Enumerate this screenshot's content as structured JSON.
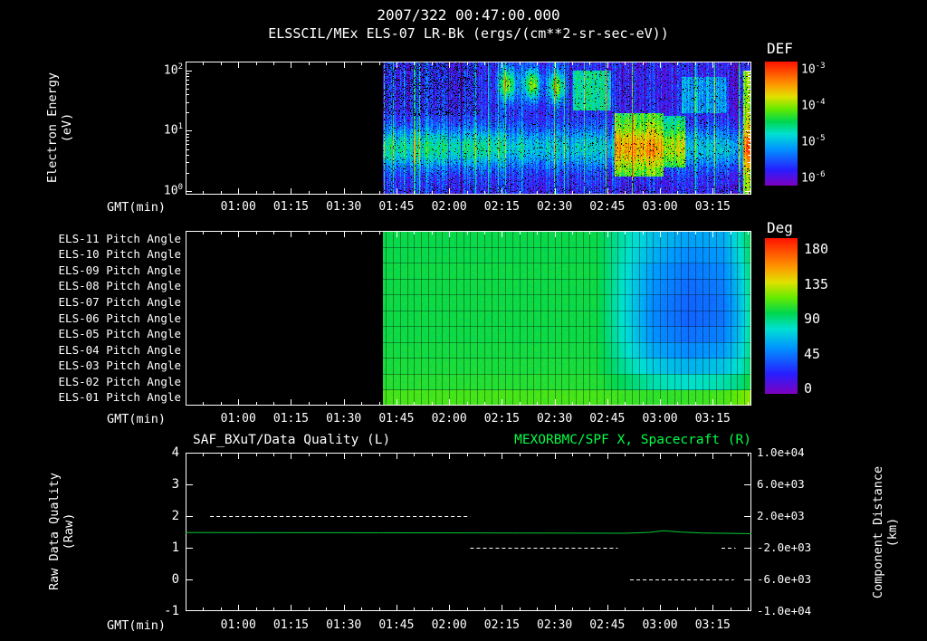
{
  "header": {
    "title": "2007/322 00:47:00.000",
    "subtitle": "ELSSCIL/MEx ELS-07 LR-Bk  (ergs/(cm**2-sr-sec-eV))"
  },
  "time_axis": {
    "label": "GMT(min)",
    "t_start": 45,
    "t_end": 206,
    "minor_step": 5,
    "major_ticks": [
      {
        "t": 60,
        "label": "01:00"
      },
      {
        "t": 75,
        "label": "01:15"
      },
      {
        "t": 90,
        "label": "01:30"
      },
      {
        "t": 105,
        "label": "01:45"
      },
      {
        "t": 120,
        "label": "02:00"
      },
      {
        "t": 135,
        "label": "02:15"
      },
      {
        "t": 150,
        "label": "02:30"
      },
      {
        "t": 165,
        "label": "02:45"
      },
      {
        "t": 180,
        "label": "03:00"
      },
      {
        "t": 195,
        "label": "03:15"
      }
    ]
  },
  "colors": {
    "background": "#000000",
    "frame": "#ffffff",
    "text": "#ffffff",
    "green_accent": "#00ff44",
    "spacecraft_line": "#00cc33"
  },
  "rainbow_stops": [
    [
      0.0,
      130,
      0,
      190
    ],
    [
      0.13,
      40,
      30,
      255
    ],
    [
      0.3,
      0,
      150,
      255
    ],
    [
      0.42,
      0,
      225,
      210
    ],
    [
      0.52,
      0,
      215,
      80
    ],
    [
      0.62,
      100,
      235,
      0
    ],
    [
      0.72,
      225,
      225,
      0
    ],
    [
      0.82,
      255,
      150,
      0
    ],
    [
      1.0,
      255,
      20,
      0
    ]
  ],
  "chart_data": [
    {
      "id": "electron-energy-spectrogram",
      "type": "heatmap",
      "ylabel": {
        "line1": "Electron Energy",
        "line2": "(eV)"
      },
      "y_scale": "log",
      "y_tick_exponents": [
        2,
        1,
        0
      ],
      "exp_top": 2.15,
      "exp_bottom": -0.06,
      "colorbar": {
        "label": "DEF",
        "tick_exponents": [
          -3,
          -4,
          -5,
          -6
        ],
        "range_exp": [
          -6,
          -3
        ]
      },
      "data_start_t": 101,
      "base_level": -5.6,
      "band": {
        "center_exp": 0.72,
        "sigma": 0.33,
        "amp": 0.95,
        "fade_after_t": 135,
        "fade_factor": 0.8
      },
      "patches": {
        "sigma_t": 2.4,
        "sigma_exp": 0.27,
        "items": [
          {
            "t": 136.5,
            "exp": 1.78,
            "amp": 1.5
          },
          {
            "t": 143.5,
            "exp": 1.78,
            "amp": 1.6
          },
          {
            "t": 150.5,
            "exp": 1.74,
            "amp": 1.45
          }
        ]
      },
      "blocks": [
        {
          "t0": 167,
          "t1": 181,
          "e0": 0.25,
          "e1": 1.3,
          "amp": 1.3
        },
        {
          "t0": 181,
          "t1": 187,
          "e0": 0.4,
          "e1": 1.25,
          "amp": 0.9
        },
        {
          "t0": 155,
          "t1": 166,
          "e0": 1.35,
          "e1": 2.0,
          "amp": 0.95
        },
        {
          "t0": 186,
          "t1": 199,
          "e0": 1.3,
          "e1": 1.9,
          "amp": 0.55
        },
        {
          "t0": 203.5,
          "t1": 206,
          "e0": -0.1,
          "e1": 2.0,
          "amp": 1.5
        }
      ],
      "noise": {
        "pixel_amp": 0.55,
        "streak_amp": 0.6,
        "strong_streak_p": 0.06,
        "speckle_base_p": 0.05,
        "speckle_top_p": 0.2,
        "speckle_top_exp_min": 1.25,
        "speckle_top_t_max": 128
      }
    },
    {
      "id": "pitch-angle-panels",
      "type": "heatmap",
      "row_labels": [
        "ELS-11 Pitch Angle",
        "ELS-10 Pitch Angle",
        "ELS-09 Pitch Angle",
        "ELS-08 Pitch Angle",
        "ELS-07 Pitch Angle",
        "ELS-06 Pitch Angle",
        "ELS-05 Pitch Angle",
        "ELS-04 Pitch Angle",
        "ELS-03 Pitch Angle",
        "ELS-02 Pitch Angle",
        "ELS-01 Pitch Angle"
      ],
      "colorbar": {
        "label": "Deg",
        "ticks": [
          180,
          135,
          90,
          45,
          0
        ],
        "range": [
          0,
          180
        ]
      },
      "data_start_t": 101,
      "control_times": [
        101,
        162,
        170,
        178,
        188,
        198,
        203,
        206
      ],
      "rows_deg": [
        [
          95,
          95,
          80,
          66,
          57,
          60,
          80,
          96
        ],
        [
          95,
          95,
          78,
          61,
          51,
          55,
          76,
          94
        ],
        [
          96,
          96,
          76,
          56,
          46,
          51,
          72,
          92
        ],
        [
          96,
          96,
          75,
          53,
          43,
          48,
          69,
          90
        ],
        [
          96,
          96,
          74,
          51,
          41,
          46,
          67,
          89
        ],
        [
          96,
          96,
          74,
          51,
          41,
          46,
          66,
          88
        ],
        [
          96,
          96,
          75,
          53,
          44,
          49,
          68,
          88
        ],
        [
          97,
          97,
          78,
          59,
          51,
          56,
          72,
          90
        ],
        [
          98,
          98,
          83,
          69,
          62,
          67,
          78,
          93
        ],
        [
          100,
          100,
          91,
          81,
          76,
          81,
          88,
          99
        ],
        [
          106,
          106,
          104,
          102,
          103,
          106,
          112,
          118
        ]
      ],
      "noise_deg": 2.5
    },
    {
      "id": "data-quality-and-spacecraft-x",
      "type": "line",
      "left_title": "SAF_BXuT/Data Quality (L)",
      "right_title": "MEXORBMC/SPF X, Spacecraft (R)",
      "left_ylabel": {
        "line1": "Raw Data Quality",
        "line2": "(Raw)"
      },
      "right_ylabel": {
        "line1": "Component Distance",
        "line2": "(km)"
      },
      "left_ticks": [
        4,
        3,
        2,
        1,
        0,
        -1
      ],
      "left_range": [
        -1,
        4
      ],
      "right_tick_labels": [
        "1.0e+04",
        "6.0e+03",
        "2.0e+03",
        "-2.0e+03",
        "-6.0e+03",
        "-1.0e+04"
      ],
      "right_range": [
        -10000,
        10000
      ],
      "series": [
        {
          "name": "SAF_BXuT/Data Quality",
          "axis": "left",
          "style": "dashed",
          "color": "#ffffff",
          "segments": [
            {
              "t0": 52,
              "t1": 126,
              "value": 2
            },
            {
              "t0": 126,
              "t1": 168,
              "value": 1
            },
            {
              "t0": 171.5,
              "t1": 201,
              "value": 0
            },
            {
              "t0": 197.5,
              "t1": 201.5,
              "value": 1
            }
          ]
        },
        {
          "name": "MEXORBMC/SPF X Spacecraft",
          "axis": "right",
          "style": "solid",
          "color": "#00cc33",
          "points_t_km": [
            [
              45,
              -80
            ],
            [
              100,
              -110
            ],
            [
              140,
              -140
            ],
            [
              170,
              -170
            ],
            [
              177,
              -60
            ],
            [
              181,
              150
            ],
            [
              186,
              -20
            ],
            [
              192,
              -140
            ],
            [
              206,
              -220
            ]
          ]
        }
      ]
    }
  ]
}
